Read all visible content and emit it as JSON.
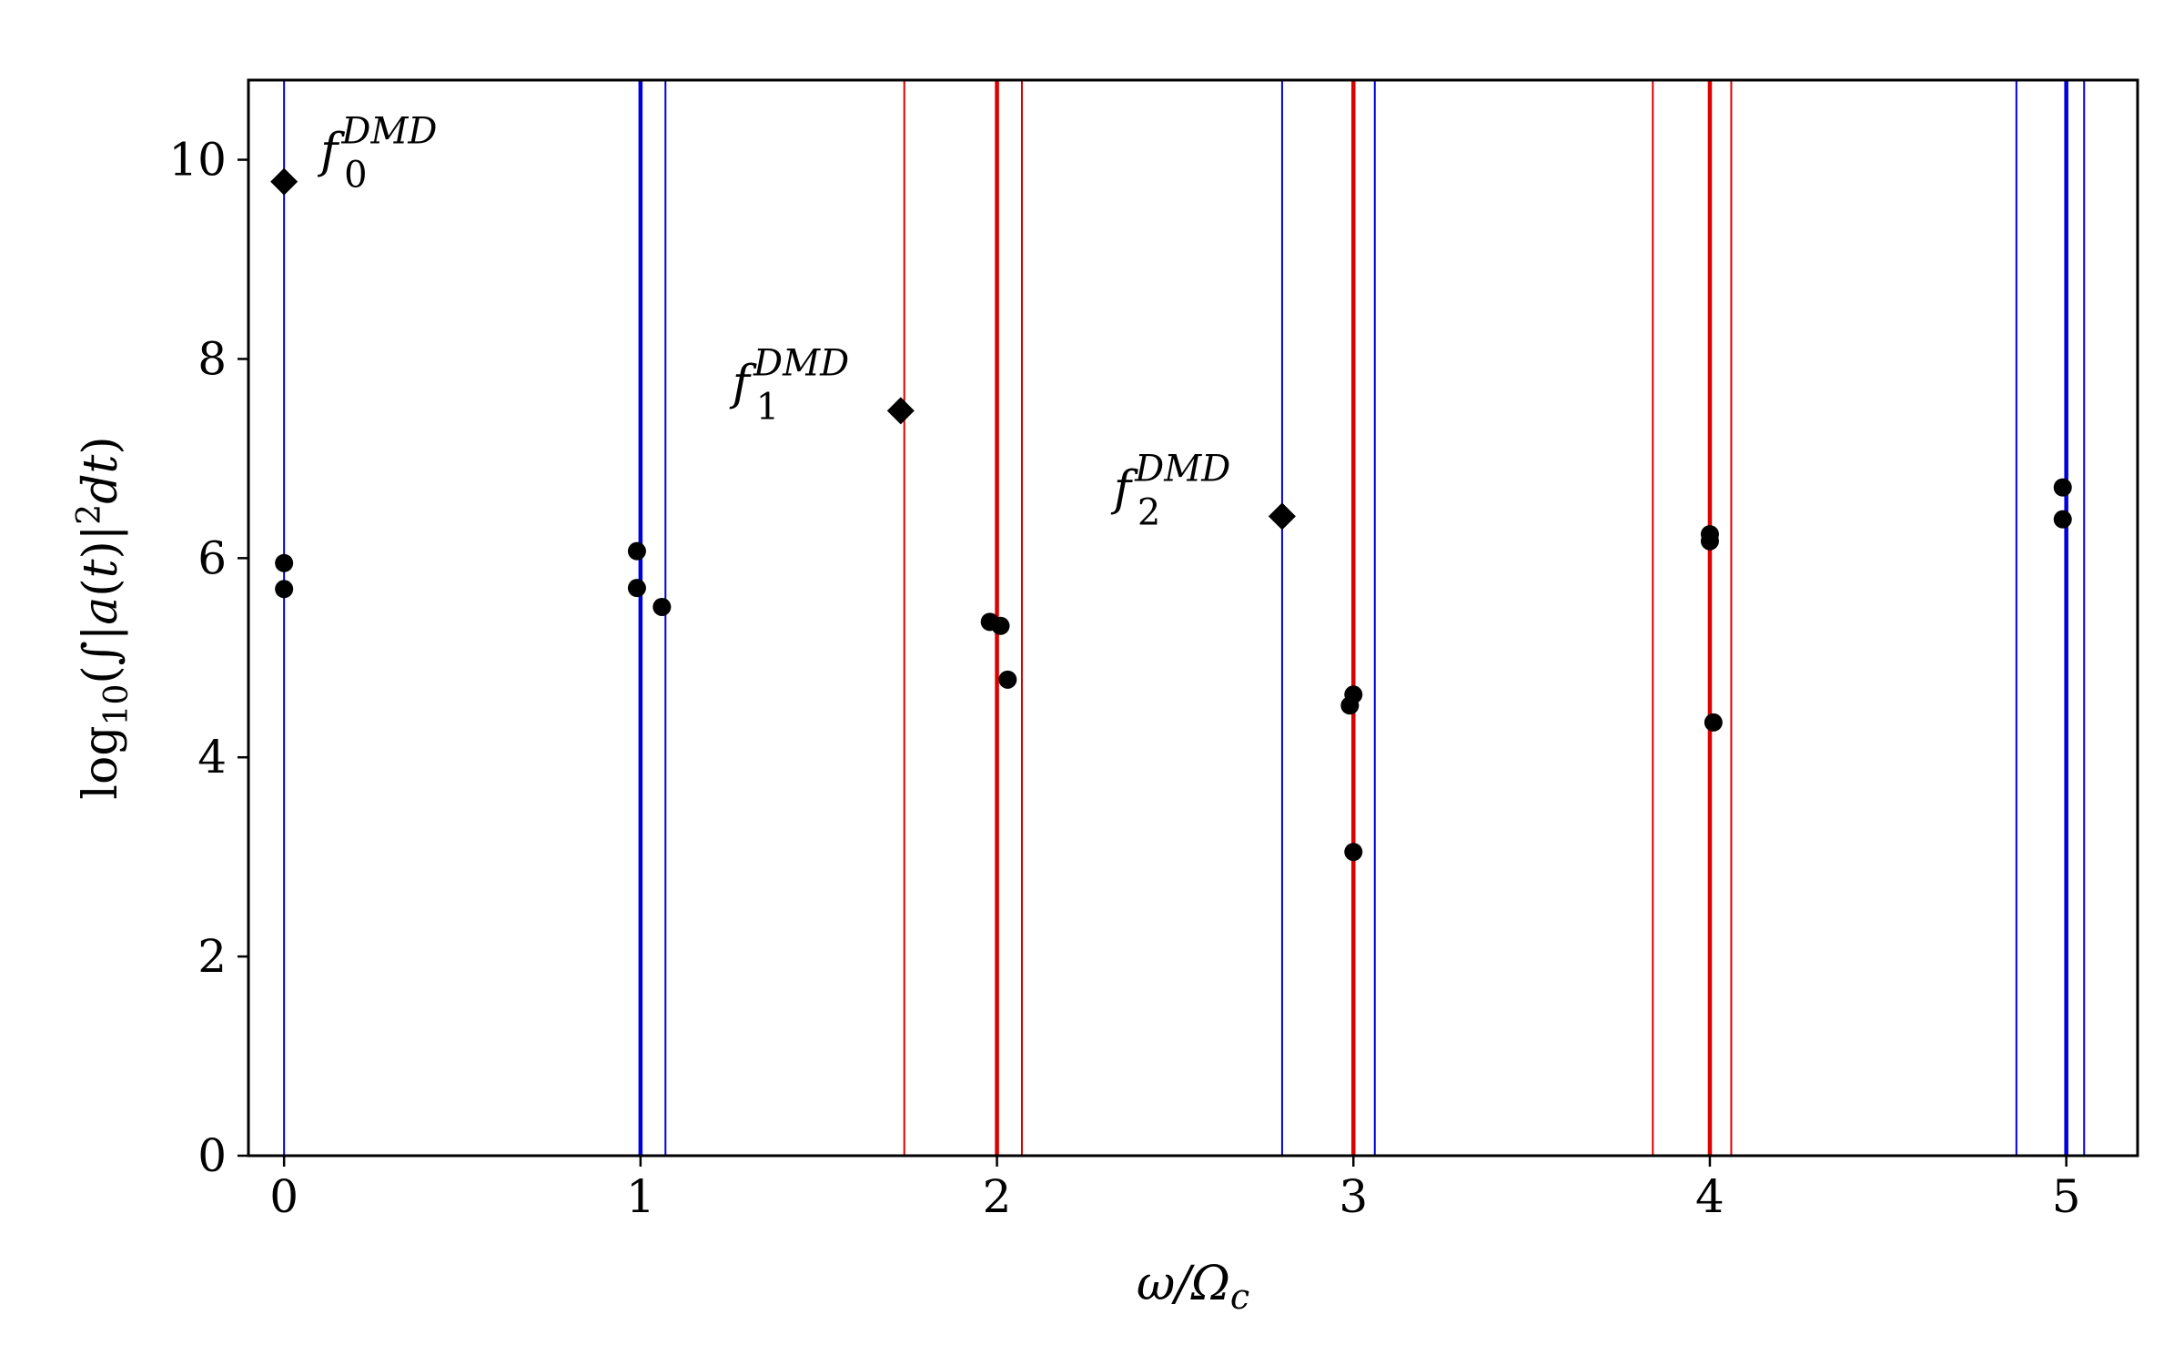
{
  "chart_data": {
    "type": "scatter",
    "xlabel": "ω/Ω_c",
    "ylabel": "log₁₀(∫|a(t)|²dt)",
    "xlim": [
      -0.1,
      5.2
    ],
    "ylim": [
      0,
      10.8
    ],
    "x_ticks": [
      0,
      1,
      2,
      3,
      4,
      5
    ],
    "y_ticks": [
      0,
      2,
      4,
      6,
      8,
      10
    ],
    "grid": false,
    "colors": {
      "blue": "#0000dd",
      "red": "#dd0000",
      "marker": "#000000"
    },
    "vertical_lines": [
      {
        "x": 0.0,
        "color": "blue",
        "weight": "thin"
      },
      {
        "x": 1.0,
        "color": "blue",
        "weight": "thick"
      },
      {
        "x": 1.07,
        "color": "blue",
        "weight": "thin"
      },
      {
        "x": 1.74,
        "color": "red",
        "weight": "thin"
      },
      {
        "x": 2.0,
        "color": "red",
        "weight": "thick"
      },
      {
        "x": 2.07,
        "color": "red",
        "weight": "thin"
      },
      {
        "x": 2.8,
        "color": "blue",
        "weight": "thin"
      },
      {
        "x": 3.0,
        "color": "red",
        "weight": "thick"
      },
      {
        "x": 3.06,
        "color": "blue",
        "weight": "thin"
      },
      {
        "x": 3.84,
        "color": "red",
        "weight": "thin"
      },
      {
        "x": 4.0,
        "color": "red",
        "weight": "thick"
      },
      {
        "x": 4.06,
        "color": "red",
        "weight": "thin"
      },
      {
        "x": 4.86,
        "color": "blue",
        "weight": "thin"
      },
      {
        "x": 5.0,
        "color": "blue",
        "weight": "thick"
      },
      {
        "x": 5.05,
        "color": "blue",
        "weight": "thin"
      }
    ],
    "points": [
      {
        "x": 0.0,
        "y": 5.95
      },
      {
        "x": 0.0,
        "y": 5.69
      },
      {
        "x": 0.99,
        "y": 6.07
      },
      {
        "x": 0.99,
        "y": 5.7
      },
      {
        "x": 1.06,
        "y": 5.51
      },
      {
        "x": 1.98,
        "y": 5.36
      },
      {
        "x": 2.01,
        "y": 5.32
      },
      {
        "x": 2.03,
        "y": 4.78
      },
      {
        "x": 2.99,
        "y": 4.52
      },
      {
        "x": 3.0,
        "y": 4.63
      },
      {
        "x": 3.0,
        "y": 3.05
      },
      {
        "x": 4.0,
        "y": 6.24
      },
      {
        "x": 4.0,
        "y": 6.17
      },
      {
        "x": 4.01,
        "y": 4.35
      },
      {
        "x": 4.99,
        "y": 6.71
      },
      {
        "x": 4.99,
        "y": 6.39
      }
    ],
    "dmd_points": [
      {
        "x": 0.0,
        "y": 9.78,
        "label": "f",
        "sub": "0",
        "sup": "DMD"
      },
      {
        "x": 1.73,
        "y": 7.48,
        "label": "f",
        "sub": "1",
        "sup": "DMD"
      },
      {
        "x": 2.8,
        "y": 6.42,
        "label": "f",
        "sub": "2",
        "sup": "DMD"
      }
    ]
  }
}
